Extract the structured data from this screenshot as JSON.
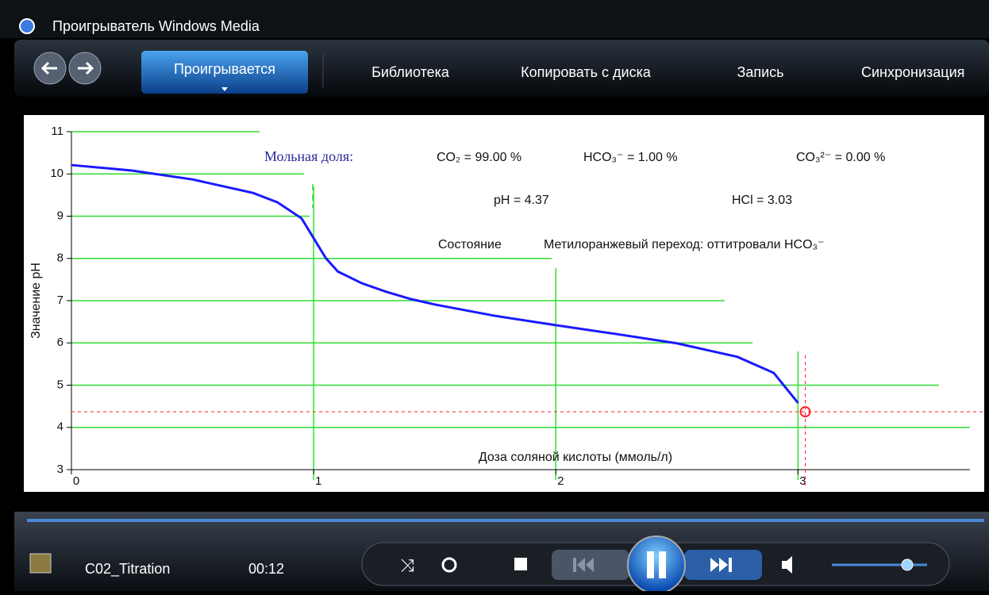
{
  "window": {
    "title": "Проигрыватель Windows Media"
  },
  "tabs": [
    "Проигрывается",
    "Библиотека",
    "Копировать с диска",
    "Запись",
    "Синхронизация"
  ],
  "chart_data": {
    "type": "line",
    "xlabel": "Доза соляной кислоты (ммоль/л)",
    "ylabel": "Значение pH",
    "x": [
      0,
      0.25,
      0.5,
      0.75,
      0.85,
      0.95,
      1.0,
      1.05,
      1.1,
      1.2,
      1.3,
      1.4,
      1.5,
      1.75,
      2.0,
      2.25,
      2.5,
      2.75,
      2.9,
      3.0
    ],
    "series": [
      {
        "color": "#1a1aff",
        "values": [
          10.21,
          10.08,
          9.87,
          9.55,
          9.33,
          8.95,
          8.48,
          8.01,
          7.69,
          7.41,
          7.21,
          7.04,
          6.91,
          6.64,
          6.42,
          6.21,
          5.99,
          5.67,
          5.29,
          4.58
        ]
      }
    ],
    "xlim": [
      0,
      3.71
    ],
    "ylim": [
      3,
      11
    ],
    "xticks": [
      0,
      1,
      2,
      3
    ],
    "yticks": [
      3,
      4,
      5,
      6,
      7,
      8,
      9,
      10,
      11
    ],
    "grid": true,
    "grid_color": "#33dd33",
    "marker": {
      "x": 3.03,
      "y": 4.37,
      "color": "#ff2020"
    },
    "annotations": {
      "fraction": "Мольная доля:",
      "co2": "CO₂ = 99.00 %",
      "hco3": "HCO₃⁻ = 1.00 %",
      "co3": "CO₃²⁻ = 0.00 %",
      "ph": "pH = 4.37",
      "hcl": "HCl = 3.03",
      "state": "Состояние",
      "transition": "Метилоранжевый переход: оттитровали HCO₃⁻"
    }
  },
  "player": {
    "file": "C02_Titration",
    "time": "00:12"
  }
}
